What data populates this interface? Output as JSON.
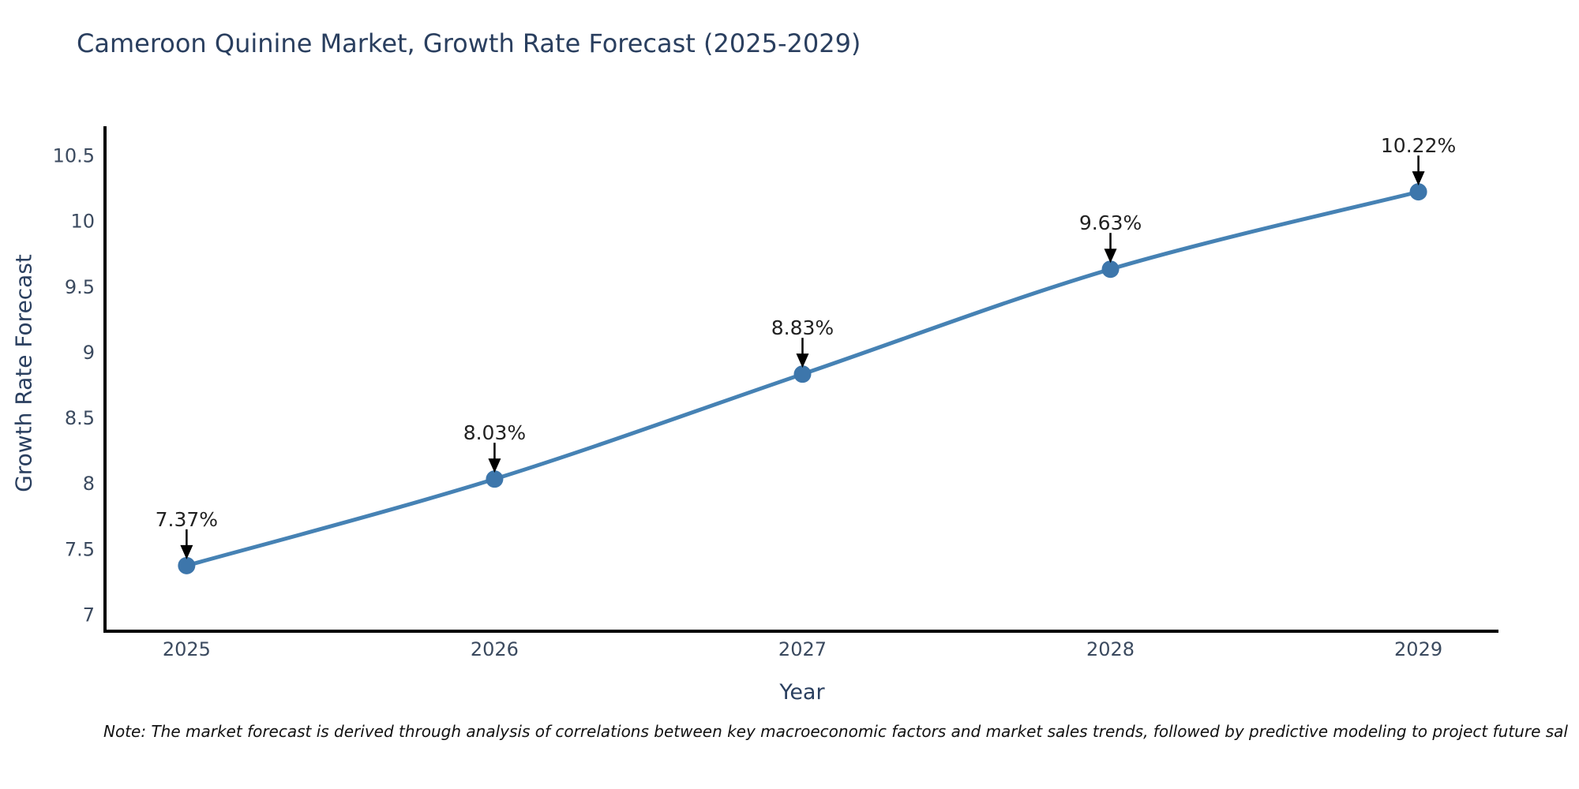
{
  "note": "Note: The market forecast is derived through analysis of correlations between key macroeconomic factors and market sales trends, followed by predictive modeling to project future sal",
  "chart_data": {
    "type": "line",
    "title": "Cameroon Quinine Market, Growth Rate Forecast (2025-2029)",
    "xlabel": "Year",
    "ylabel": "Growth Rate Forecast",
    "categories": [
      "2025",
      "2026",
      "2027",
      "2028",
      "2029"
    ],
    "x_values": [
      2025,
      2026,
      2027,
      2028,
      2029
    ],
    "values": [
      7.37,
      8.03,
      8.83,
      9.63,
      10.22
    ],
    "point_labels": [
      "7.37%",
      "8.03%",
      "8.83%",
      "9.63%",
      "10.22%"
    ],
    "ytick_labels": [
      "7",
      "7.5",
      "8",
      "8.5",
      "9",
      "9.5",
      "10",
      "10.5"
    ],
    "ytick_values": [
      7,
      7.5,
      8,
      8.5,
      9,
      9.5,
      10,
      10.5
    ],
    "xlim": [
      2024.735,
      2029.26
    ],
    "ylim": [
      6.87,
      10.72
    ],
    "grid": false,
    "legend": false,
    "annotation_arrows": true,
    "colors": {
      "line": "#4682b4",
      "marker": "#3d76ab",
      "axis": "#000000",
      "arrow": "#000000",
      "title_text": "#2a3f5f",
      "tick_text": "#3b4a5f",
      "annotation_text": "#222222",
      "note_text": "#111111"
    }
  }
}
